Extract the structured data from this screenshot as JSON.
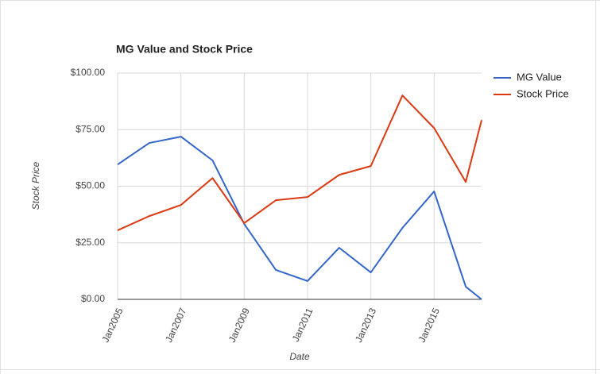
{
  "chart_data": {
    "type": "line",
    "title": "MG Value and Stock Price",
    "x_label": "Date",
    "y_label": "Stock Price",
    "x": [
      2005,
      2006,
      2007,
      2008,
      2009,
      2010,
      2011,
      2012,
      2013,
      2014,
      2015,
      2016,
      2016.5
    ],
    "series": [
      {
        "name": "MG Value",
        "color": "#3366cc",
        "values": [
          59.6,
          69.1,
          71.9,
          61.4,
          33.3,
          13.0,
          8.1,
          22.8,
          11.9,
          31.6,
          47.7,
          5.6,
          0
        ]
      },
      {
        "name": "Stock Price",
        "color": "#dc3912",
        "values": [
          30.5,
          36.8,
          41.7,
          53.6,
          33.7,
          43.8,
          45.2,
          55.0,
          58.9,
          90.1,
          75.7,
          51.9,
          79.2
        ]
      }
    ],
    "xlim": [
      2005,
      2016.5
    ],
    "xticks": [
      {
        "value": 2005,
        "label": "Jan2005"
      },
      {
        "value": 2007,
        "label": "Jan2007"
      },
      {
        "value": 2009,
        "label": "Jan2009"
      },
      {
        "value": 2011,
        "label": "Jan2011"
      },
      {
        "value": 2013,
        "label": "Jan2013"
      },
      {
        "value": 2015,
        "label": "Jan2015"
      }
    ],
    "ylim": [
      0,
      100
    ],
    "yticks": [
      {
        "value": 0,
        "label": "$0.00"
      },
      {
        "value": 25,
        "label": "$25.00"
      },
      {
        "value": 50,
        "label": "$50.00"
      },
      {
        "value": 75,
        "label": "$75.00"
      },
      {
        "value": 100,
        "label": "$100.00"
      }
    ],
    "grid": true,
    "legend": "right"
  }
}
